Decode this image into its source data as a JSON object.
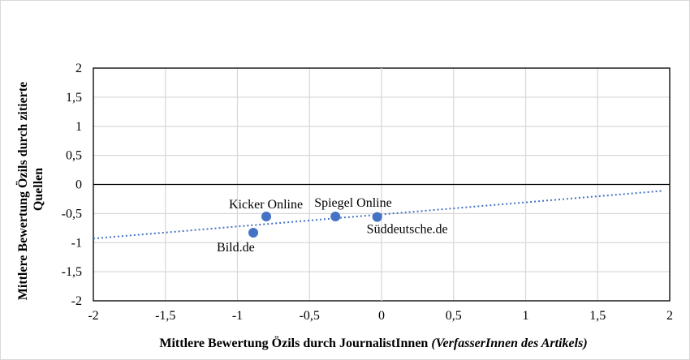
{
  "chart_data": {
    "type": "scatter",
    "xlabel": "Mittlere Bewertung Özils durch JournalistInnen",
    "xlabel_suffix": "(VerfasserInnen des Artikels)",
    "ylabel_line1": "Mittlere Bewertung Özils durch zitierte",
    "ylabel_line2": "Quellen",
    "xlim": [
      -2,
      2
    ],
    "ylim": [
      -2,
      2
    ],
    "x_ticks": [
      -2,
      -1.5,
      -1,
      -0.5,
      0,
      0.5,
      1,
      1.5,
      2
    ],
    "y_ticks": [
      -2,
      -1.5,
      -1,
      -0.5,
      0,
      0.5,
      1,
      1.5,
      2
    ],
    "x_tick_labels": [
      "-2",
      "-1,5",
      "-1",
      "-0,5",
      "0",
      "0,5",
      "1",
      "1,5",
      "2"
    ],
    "y_tick_labels": [
      "-2",
      "-1,5",
      "-1",
      "-0,5",
      "0",
      "0,5",
      "1",
      "1,5",
      "2"
    ],
    "grid": true,
    "points": [
      {
        "label": "Kicker Online",
        "x": -0.8,
        "y": -0.55
      },
      {
        "label": "Spiegel Online",
        "x": -0.32,
        "y": -0.55
      },
      {
        "label": "Süddeutsche.de",
        "x": -0.03,
        "y": -0.56
      },
      {
        "label": "Bild.de",
        "x": -0.89,
        "y": -0.83
      }
    ],
    "trendline": {
      "style": "dotted",
      "x": [
        -2,
        1.95
      ],
      "y": [
        -0.93,
        -0.11
      ]
    },
    "colors": {
      "marker": "#4472c4",
      "trendline": "#4472c4",
      "grid": "#d9d9d9"
    }
  }
}
